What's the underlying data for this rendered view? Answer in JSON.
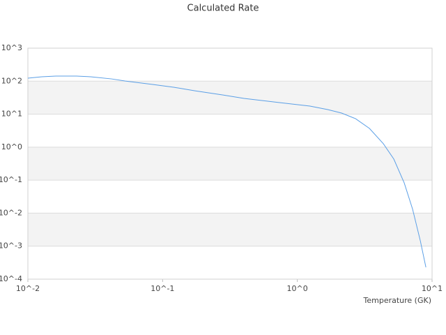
{
  "chart_data": {
    "type": "line",
    "title": "Calculated Rate",
    "x_label": "Temperature (GK)",
    "x_log": true,
    "y_log": true,
    "grid": true,
    "xlim": [
      0.01,
      10
    ],
    "ylim": [
      0.0001,
      1000
    ],
    "xticks": [
      {
        "value": 0.01,
        "label": "10^-2"
      },
      {
        "value": 0.1,
        "label": "10^-1"
      },
      {
        "value": 1,
        "label": "10^0"
      },
      {
        "value": 10,
        "label": "10^1"
      }
    ],
    "yticks": [
      {
        "value": 0.0001,
        "label": "10^-4"
      },
      {
        "value": 0.001,
        "label": "10^-3"
      },
      {
        "value": 0.01,
        "label": "10^-2"
      },
      {
        "value": 0.1,
        "label": "10^-1"
      },
      {
        "value": 1,
        "label": "10^0"
      },
      {
        "value": 10,
        "label": "10^1"
      },
      {
        "value": 100,
        "label": "10^2"
      },
      {
        "value": 1000,
        "label": "10^3"
      }
    ],
    "series": [
      {
        "color": "#5b9fe6",
        "x": [
          0.01,
          0.0127,
          0.0161,
          0.023,
          0.0292,
          0.0418,
          0.053,
          0.0853,
          0.122,
          0.174,
          0.281,
          0.402,
          0.728,
          1.24,
          1.68,
          2.13,
          2.7,
          3.43,
          4.35,
          5.2,
          6.21,
          7.17,
          8.18,
          9.0
        ],
        "values": [
          123,
          136,
          143,
          143,
          136,
          117,
          101,
          79,
          65,
          51,
          38,
          30,
          22.5,
          17.6,
          13.8,
          10.8,
          7.33,
          3.7,
          1.27,
          0.436,
          0.083,
          0.0132,
          0.00146,
          0.000229
        ]
      }
    ]
  }
}
